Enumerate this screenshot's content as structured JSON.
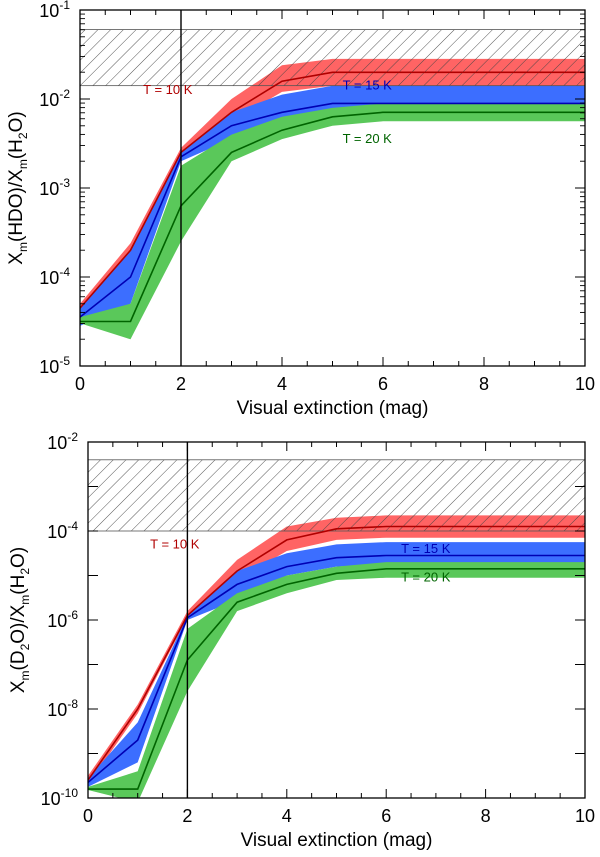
{
  "chart_data": [
    {
      "type": "area",
      "ylabel": {
        "base": "X",
        "sub1": "m",
        "mid1": "(HDO)/X",
        "sub2": "m",
        "mid2": "(H",
        "sub3": "2",
        "end": "O)"
      },
      "xlabel": "Visual extinction (mag)",
      "xlim": [
        0,
        10
      ],
      "ylim_log10": [
        -5,
        -1
      ],
      "y_scale": "log",
      "xticks": [
        0,
        2,
        4,
        6,
        8,
        10
      ],
      "yticks": [
        {
          "base": "10",
          "exp": "-5",
          "value": -5
        },
        {
          "base": "10",
          "exp": "-4",
          "value": -4
        },
        {
          "base": "10",
          "exp": "-3",
          "value": -3
        },
        {
          "base": "10",
          "exp": "-2",
          "value": -2
        },
        {
          "base": "10",
          "exp": "-1",
          "value": -1
        }
      ],
      "observed_range_log10": [
        -1.85,
        -1.22
      ],
      "vertical_line_x": 2,
      "series": [
        {
          "name": "T = 10 K",
          "color": "#b00000",
          "band_color": "#ff6464",
          "x": [
            0,
            1,
            2,
            3,
            4,
            5,
            6,
            8,
            10
          ],
          "line_log10": [
            -4.35,
            -3.7,
            -2.6,
            -2.15,
            -1.8,
            -1.7,
            -1.7,
            -1.7,
            -1.7
          ],
          "band_low_log10": [
            -4.45,
            -3.75,
            -2.62,
            -2.25,
            -1.92,
            -1.85,
            -1.85,
            -1.85,
            -1.85
          ],
          "band_high_log10": [
            -4.3,
            -3.62,
            -2.55,
            -2.0,
            -1.62,
            -1.55,
            -1.55,
            -1.55,
            -1.55
          ],
          "label_x": 1.25,
          "label_log10": -1.9
        },
        {
          "name": "T = 15 K",
          "color": "#0000b4",
          "band_color": "#3c6eff",
          "x": [
            0,
            1,
            2,
            3,
            4,
            5,
            6,
            8,
            10
          ],
          "line_log10": [
            -4.45,
            -4.0,
            -2.65,
            -2.3,
            -2.15,
            -2.05,
            -2.05,
            -2.05,
            -2.05
          ],
          "band_low_log10": [
            -4.55,
            -4.3,
            -2.7,
            -2.45,
            -2.25,
            -2.15,
            -2.15,
            -2.15,
            -2.15
          ],
          "band_high_log10": [
            -4.35,
            -3.7,
            -2.6,
            -2.15,
            -1.95,
            -1.85,
            -1.85,
            -1.85,
            -1.85
          ],
          "label_x": 5.2,
          "label_log10": -1.85
        },
        {
          "name": "T = 20 K",
          "color": "#006400",
          "band_color": "#5ac85a",
          "x": [
            0,
            1,
            2,
            3,
            4,
            5,
            6,
            8,
            10
          ],
          "line_log10": [
            -4.5,
            -4.5,
            -3.2,
            -2.6,
            -2.35,
            -2.2,
            -2.15,
            -2.15,
            -2.15
          ],
          "band_low_log10": [
            -4.52,
            -4.7,
            -3.6,
            -2.7,
            -2.45,
            -2.3,
            -2.25,
            -2.25,
            -2.25
          ],
          "band_high_log10": [
            -4.45,
            -4.3,
            -2.75,
            -2.4,
            -2.2,
            -2.1,
            -2.05,
            -2.05,
            -2.05
          ],
          "label_x": 5.2,
          "label_log10": -2.45
        }
      ]
    },
    {
      "type": "area",
      "ylabel": {
        "base": "X",
        "sub1": "m",
        "mid1": "(D",
        "sub2": "2",
        "mid2": "O)/X",
        "sub3": "m",
        "end": "(H",
        "sub4": "2",
        "end2": "O)"
      },
      "xlabel": "Visual extinction (mag)",
      "xlim": [
        0,
        10
      ],
      "ylim_log10": [
        -10,
        -2
      ],
      "y_scale": "log",
      "xticks": [
        0,
        2,
        4,
        6,
        8,
        10
      ],
      "yticks": [
        {
          "base": "10",
          "exp": "-10",
          "value": -10
        },
        {
          "base": "10",
          "exp": "-8",
          "value": -8
        },
        {
          "base": "10",
          "exp": "-6",
          "value": -6
        },
        {
          "base": "10",
          "exp": "-4",
          "value": -4
        },
        {
          "base": "10",
          "exp": "-2",
          "value": -2
        }
      ],
      "observed_range_log10": [
        -4.0,
        -2.4
      ],
      "vertical_line_x": 2,
      "series": [
        {
          "name": "T = 10 K",
          "color": "#b00000",
          "band_color": "#ff6464",
          "x": [
            0,
            1,
            2,
            3,
            4,
            5,
            6,
            8,
            10
          ],
          "line_log10": [
            -9.6,
            -8.0,
            -5.9,
            -4.9,
            -4.2,
            -3.95,
            -3.9,
            -3.9,
            -3.9
          ],
          "band_low_log10": [
            -9.7,
            -8.1,
            -5.95,
            -5.1,
            -4.45,
            -4.2,
            -4.15,
            -4.15,
            -4.15
          ],
          "band_high_log10": [
            -9.5,
            -7.9,
            -5.8,
            -4.65,
            -3.9,
            -3.7,
            -3.65,
            -3.65,
            -3.65
          ],
          "label_x": 1.25,
          "label_log10": -4.3
        },
        {
          "name": "T = 15 K",
          "color": "#0000b4",
          "band_color": "#3c6eff",
          "x": [
            0,
            1,
            2,
            3,
            4,
            5,
            6,
            8,
            10
          ],
          "line_log10": [
            -9.65,
            -8.7,
            -5.95,
            -5.2,
            -4.8,
            -4.6,
            -4.55,
            -4.55,
            -4.55
          ],
          "band_low_log10": [
            -9.75,
            -9.2,
            -6.0,
            -5.55,
            -5.0,
            -4.8,
            -4.75,
            -4.75,
            -4.75
          ],
          "band_high_log10": [
            -9.55,
            -8.3,
            -5.9,
            -4.9,
            -4.5,
            -4.3,
            -4.25,
            -4.25,
            -4.25
          ],
          "label_x": 6.3,
          "label_log10": -4.4
        },
        {
          "name": "T = 20 K",
          "color": "#006400",
          "band_color": "#5ac85a",
          "x": [
            0,
            1,
            2,
            3,
            4,
            5,
            6,
            8,
            10
          ],
          "line_log10": [
            -9.8,
            -9.8,
            -6.9,
            -5.6,
            -5.2,
            -4.95,
            -4.85,
            -4.85,
            -4.85
          ],
          "band_low_log10": [
            -9.82,
            -10.1,
            -7.6,
            -5.8,
            -5.4,
            -5.1,
            -5.05,
            -5.05,
            -5.05
          ],
          "band_high_log10": [
            -9.75,
            -9.4,
            -6.2,
            -5.4,
            -5.0,
            -4.8,
            -4.7,
            -4.7,
            -4.7
          ],
          "label_x": 6.3,
          "label_log10": -5.05
        }
      ]
    }
  ]
}
